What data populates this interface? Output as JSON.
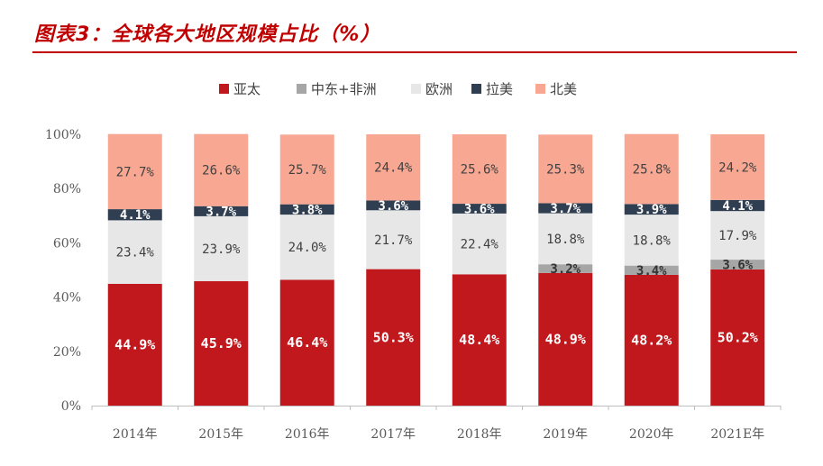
{
  "header": {
    "title": "图表3：全球各大地区规模占比（%）"
  },
  "colors": {
    "accent": "#c00000",
    "亚太": "#c0181c",
    "中东+非洲": "#a6a6a6",
    "欧洲": "#e7e7e7",
    "拉美": "#2f3e50",
    "北美": "#f8a892"
  },
  "chart_data": {
    "type": "bar",
    "stacked": true,
    "percent": true,
    "title": "",
    "xlabel": "",
    "ylabel": "",
    "ylim": [
      0,
      100
    ],
    "yticks": [
      "0%",
      "20%",
      "40%",
      "60%",
      "80%",
      "100%"
    ],
    "legend_position": "top",
    "categories": [
      "2014年",
      "2015年",
      "2016年",
      "2017年",
      "2018年",
      "2019年",
      "2020年",
      "2021E年"
    ],
    "series": [
      {
        "name": "亚太",
        "values": [
          44.9,
          45.9,
          46.4,
          50.3,
          48.4,
          48.9,
          48.2,
          50.2
        ],
        "labels": [
          "44.9%",
          "45.9%",
          "46.4%",
          "50.3%",
          "48.4%",
          "48.9%",
          "48.2%",
          "50.2%"
        ]
      },
      {
        "name": "中东+非洲",
        "values": [
          0,
          0,
          0,
          0,
          0,
          3.2,
          3.4,
          3.6
        ],
        "labels": [
          "",
          "",
          "",
          "",
          "",
          "3.2%",
          "3.4%",
          "3.6%"
        ]
      },
      {
        "name": "欧洲",
        "values": [
          23.4,
          23.9,
          24.0,
          21.7,
          22.4,
          18.8,
          18.8,
          17.9
        ],
        "labels": [
          "23.4%",
          "23.9%",
          "24.0%",
          "21.7%",
          "22.4%",
          "18.8%",
          "18.8%",
          "17.9%"
        ]
      },
      {
        "name": "拉美",
        "values": [
          4.1,
          3.7,
          3.8,
          3.6,
          3.6,
          3.7,
          3.9,
          4.1
        ],
        "labels": [
          "4.1%",
          "3.7%",
          "3.8%",
          "3.6%",
          "3.6%",
          "3.7%",
          "3.9%",
          "4.1%"
        ]
      },
      {
        "name": "北美",
        "values": [
          27.7,
          26.6,
          25.7,
          24.4,
          25.6,
          25.3,
          25.8,
          24.2
        ],
        "labels": [
          "27.7%",
          "26.6%",
          "25.7%",
          "24.4%",
          "25.6%",
          "25.3%",
          "25.8%",
          "24.2%"
        ]
      }
    ]
  }
}
